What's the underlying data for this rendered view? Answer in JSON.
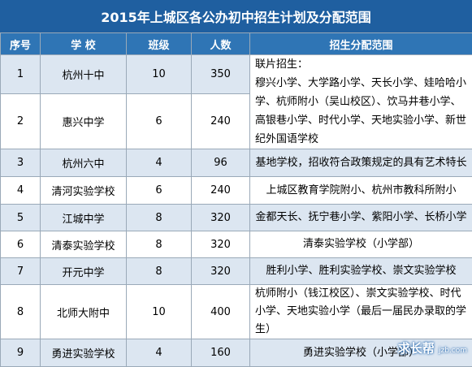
{
  "title": "2015年上城区各公办初中招生计划及分配范围",
  "headers": [
    "序号",
    "学  校",
    "班级",
    "人数",
    "招生分配范围"
  ],
  "rows": [
    {
      "no": "1",
      "school": "杭州十中",
      "classes": "10",
      "people": "350"
    },
    {
      "no": "2",
      "school": "惠兴中学",
      "classes": "6",
      "people": "240"
    },
    {
      "no": "3",
      "school": "杭州六中",
      "classes": "4",
      "people": "96",
      "range": "基地学校，招收符合政策规定的具有艺术特长"
    },
    {
      "no": "4",
      "school": "清河实验学校",
      "classes": "6",
      "people": "240",
      "range": "上城区教育学院附小、杭州市教科所附小"
    },
    {
      "no": "5",
      "school": "江城中学",
      "classes": "8",
      "people": "320",
      "range": "金都天长、抚宁巷小学、紫阳小学、长桥小学"
    },
    {
      "no": "6",
      "school": "清泰实验学校",
      "classes": "8",
      "people": "320",
      "range": "清泰实验学校（小学部）"
    },
    {
      "no": "7",
      "school": "开元中学",
      "classes": "8",
      "people": "320",
      "range": "胜利小学、胜利实验学校、崇文实验学校"
    },
    {
      "no": "8",
      "school": "北师大附中",
      "classes": "10",
      "people": "400",
      "range": "杭师附小（钱江校区）、崇文实验学校、时代小学、天地实验小学（最后一届民办录取的学生）"
    },
    {
      "no": "9",
      "school": "勇进实验学校",
      "classes": "4",
      "people": "160",
      "range": "勇进实验学校（小学部）"
    }
  ],
  "merged_range": "联片招生：\n穆兴小学、大学路小学、天长小学、娃哈哈小学、杭师附小（吴山校区）、饮马井巷小学、高银巷小学、时代小学、天地实验小学、新世纪外国语学校",
  "watermark": {
    "main": "求长帮",
    "sub": "jzb.com"
  }
}
